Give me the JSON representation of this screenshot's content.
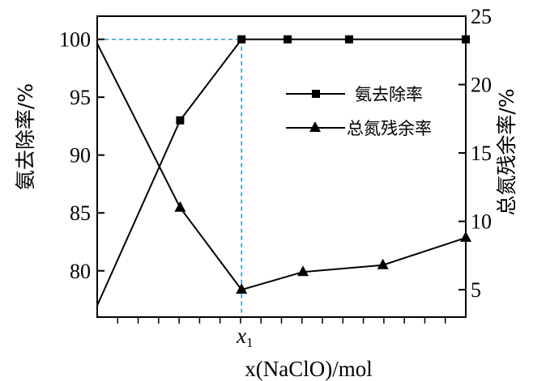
{
  "chart_data": {
    "type": "line",
    "xlabel": "x(NaClO)/mol",
    "x_tick_label_main": "x",
    "x_tick_label_sub": "1",
    "grid": false,
    "legend_placement": "top-right",
    "left_axis": {
      "label": "氨去除率/%",
      "range": [
        76,
        102
      ],
      "ticks": [
        80,
        85,
        90,
        95,
        100
      ]
    },
    "right_axis": {
      "label": "总氮残余率/%",
      "range": [
        3,
        25
      ],
      "ticks": [
        5,
        10,
        15,
        20,
        25
      ]
    },
    "x_range": [
      0,
      12
    ],
    "reference_x": 4.7,
    "reference_y_left": 100,
    "series": [
      {
        "name": "氨去除率",
        "axis": "left",
        "marker": "square",
        "x": [
          0,
          2.7,
          4.7,
          6.2,
          8.2,
          12
        ],
        "y": [
          77.0,
          93.0,
          100.0,
          100.0,
          100.0,
          100.0
        ]
      },
      {
        "name": "总氮残余率",
        "axis": "right",
        "marker": "triangle",
        "x": [
          0,
          2.7,
          4.7,
          6.7,
          9.3,
          12
        ],
        "y": [
          23.0,
          11.0,
          5.0,
          6.3,
          6.8,
          8.8
        ]
      }
    ],
    "colors": {
      "axis": "#000000",
      "series": "#000000",
      "reference_line": "#1f9bd7"
    }
  }
}
